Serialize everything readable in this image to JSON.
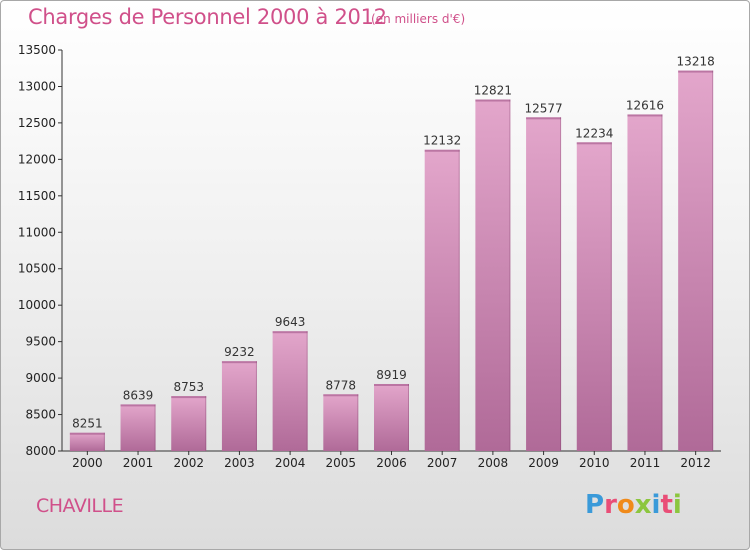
{
  "header": {
    "title": "Charges de Personnel 2000 à 2012",
    "unit_note": "(en milliers d'€)"
  },
  "footer": {
    "commune": "CHAVILLE",
    "logo": "Proxiti"
  },
  "colors": {
    "bar_top": "#e3a6cb",
    "bar_bottom": "#b06a98",
    "title": "#d0508a"
  },
  "chart_data": {
    "type": "bar",
    "categories": [
      "2000",
      "2001",
      "2002",
      "2003",
      "2004",
      "2005",
      "2006",
      "2007",
      "2008",
      "2009",
      "2010",
      "2011",
      "2012"
    ],
    "values": [
      8251,
      8639,
      8753,
      9232,
      9643,
      8778,
      8919,
      12132,
      12821,
      12577,
      12234,
      12616,
      13218
    ],
    "title": "Charges de Personnel 2000 à 2012",
    "ylim": [
      8000,
      13500
    ],
    "yticks": [
      8000,
      8500,
      9000,
      9500,
      10000,
      10500,
      11000,
      11500,
      12000,
      12500,
      13000,
      13500
    ],
    "grid": false,
    "legend": "none"
  }
}
